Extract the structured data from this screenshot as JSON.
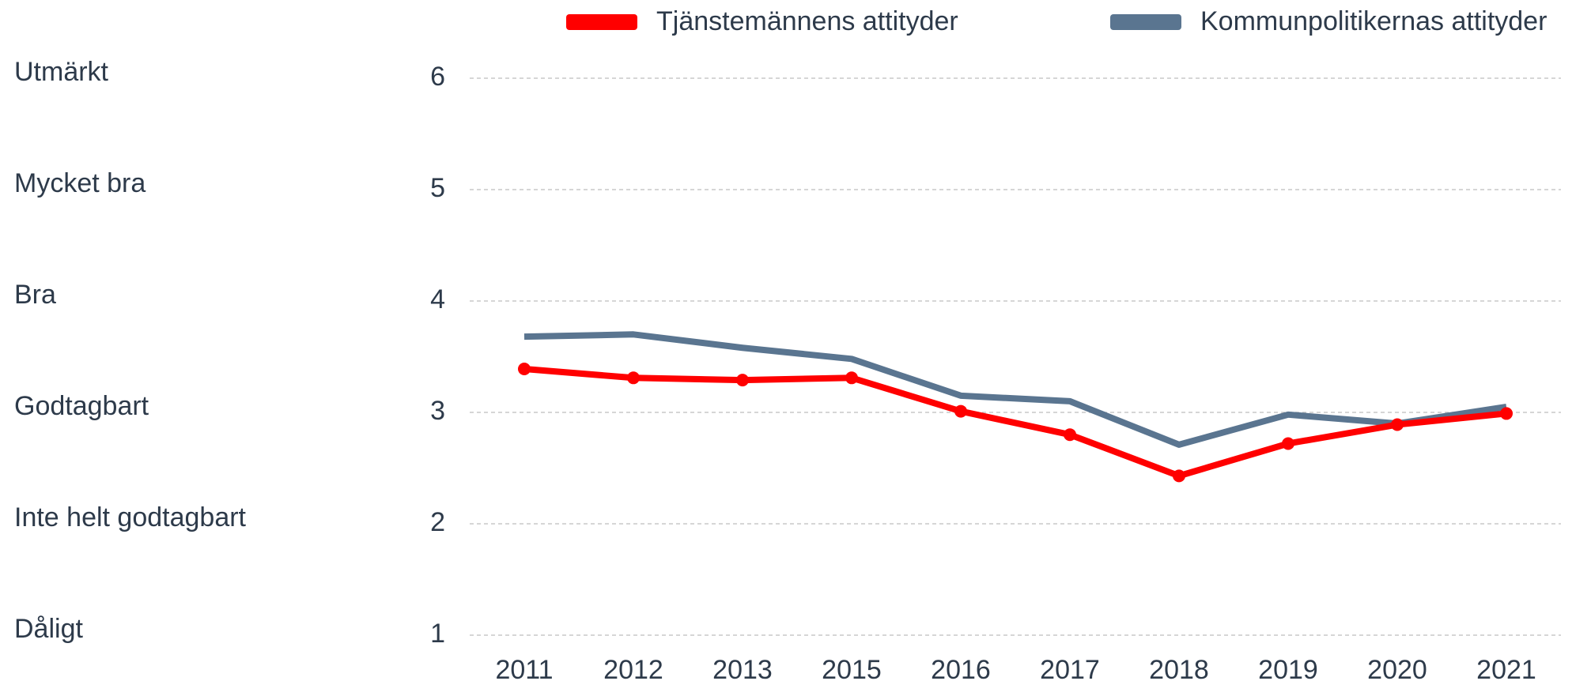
{
  "chart_data": {
    "type": "line",
    "categories": [
      "2011",
      "2012",
      "2013",
      "2015",
      "2016",
      "2017",
      "2018",
      "2019",
      "2020",
      "2021"
    ],
    "series": [
      {
        "name": "Tjänstemännens attityder",
        "color": "#ff0000",
        "markers": true,
        "values": [
          3.39,
          3.31,
          3.29,
          3.31,
          3.01,
          2.8,
          2.43,
          2.72,
          2.89,
          2.99
        ]
      },
      {
        "name": "Kommunpolitikernas attityder",
        "color": "#5a7590",
        "markers": false,
        "values": [
          3.68,
          3.7,
          3.58,
          3.48,
          3.15,
          3.1,
          2.71,
          2.98,
          2.9,
          3.05
        ]
      }
    ],
    "ylim": [
      1,
      6
    ],
    "yticks": [
      1,
      2,
      3,
      4,
      5,
      6
    ],
    "ytick_descriptions": [
      "Dåligt",
      "Inte helt godtagbart",
      "Godtagbart",
      "Bra",
      "Mycket bra",
      "Utmärkt"
    ],
    "grid": true,
    "legend": "top"
  }
}
